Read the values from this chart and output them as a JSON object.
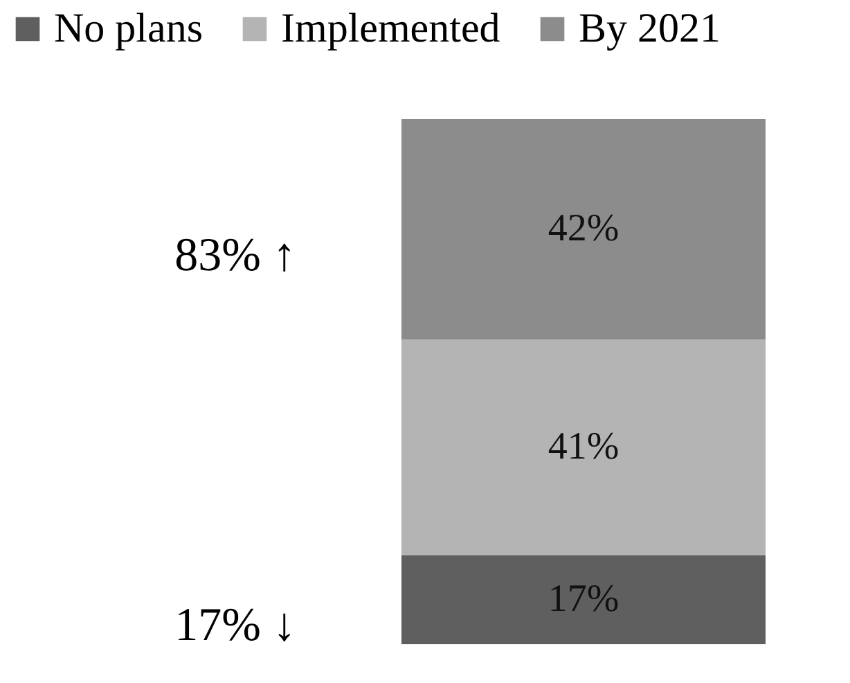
{
  "chart_data": {
    "type": "bar",
    "stacked": true,
    "categories": [
      null
    ],
    "ylim": [
      0,
      100
    ],
    "legend": "top",
    "series": [
      {
        "name": "No plans",
        "color": "#5f5f5f",
        "values": [
          17
        ],
        "value_labels": [
          "17%"
        ]
      },
      {
        "name": "Implemented",
        "color": "#b4b4b4",
        "values": [
          41
        ],
        "value_labels": [
          "41%"
        ]
      },
      {
        "name": "By 2021",
        "color": "#8c8c8c",
        "values": [
          42
        ],
        "value_labels": [
          "42%"
        ]
      }
    ],
    "annotations": [
      "83% ↑",
      "17% ↓"
    ]
  }
}
